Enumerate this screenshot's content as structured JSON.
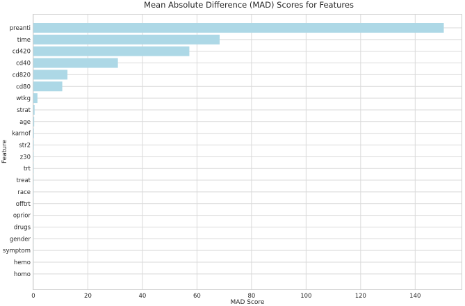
{
  "chart_data": {
    "type": "bar",
    "orientation": "horizontal",
    "title": "Mean Absolute Difference (MAD) Scores for Features",
    "xlabel": "MAD Score",
    "ylabel": "Feature",
    "xlim": [
      0,
      157
    ],
    "xticks": [
      0,
      20,
      40,
      60,
      80,
      100,
      120,
      140
    ],
    "grid": true,
    "bar_color": "#add8e6",
    "categories": [
      "preanti",
      "time",
      "cd420",
      "cd40",
      "cd820",
      "cd80",
      "wtkg",
      "strat",
      "age",
      "karnof",
      "str2",
      "z30",
      "trt",
      "treat",
      "race",
      "offtrt",
      "oprior",
      "drugs",
      "gender",
      "symptom",
      "hemo",
      "homo"
    ],
    "values": [
      150.5,
      68.3,
      57.2,
      31.0,
      12.5,
      10.6,
      1.5,
      0.45,
      0.3,
      0.2,
      0.15,
      0.12,
      0.1,
      0.08,
      0.06,
      0.05,
      0.04,
      0.04,
      0.03,
      0.03,
      0.02,
      0.02
    ]
  }
}
